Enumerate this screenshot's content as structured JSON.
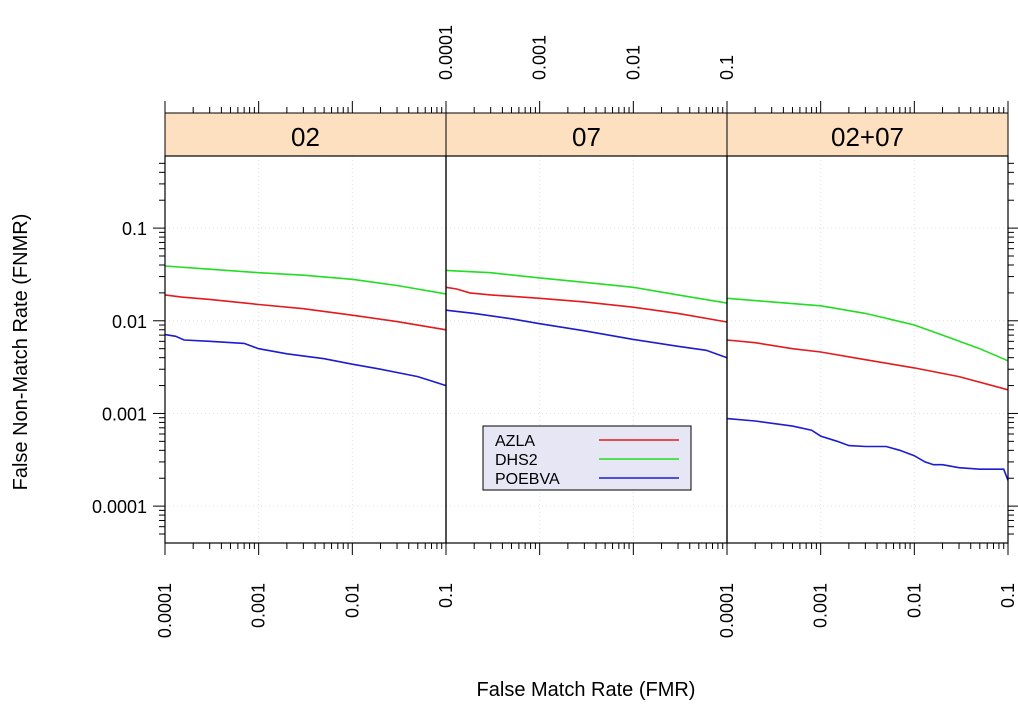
{
  "chart_data": {
    "type": "line",
    "xlabel": "False Match Rate (FMR)",
    "ylabel": "False Non-Match Rate (FNMR)",
    "x_scale": "log",
    "y_scale": "log",
    "xlim": [
      0.0001,
      0.1
    ],
    "ylim": [
      4e-05,
      0.6
    ],
    "x_ticks": [
      "0.0001",
      "0.001",
      "0.01",
      "0.1"
    ],
    "y_ticks": [
      "0.0001",
      "0.001",
      "0.01",
      "0.1"
    ],
    "grid": true,
    "legend_position": "inside-bottom-center",
    "legend": [
      "AZLA",
      "DHS2",
      "POEBVA"
    ],
    "series_colors": {
      "AZLA": "#e41a1c",
      "DHS2": "#22dd22",
      "POEBVA": "#1c1cd0"
    },
    "strip_color": "#fde0c0",
    "panels": [
      {
        "label": "02",
        "series": [
          {
            "name": "AZLA",
            "x": [
              0.0001,
              0.00015,
              0.0003,
              0.001,
              0.003,
              0.01,
              0.03,
              0.1
            ],
            "y": [
              0.019,
              0.018,
              0.017,
              0.015,
              0.0135,
              0.0115,
              0.0098,
              0.008
            ]
          },
          {
            "name": "DHS2",
            "x": [
              0.0001,
              0.0003,
              0.001,
              0.003,
              0.01,
              0.03,
              0.1
            ],
            "y": [
              0.039,
              0.036,
              0.033,
              0.031,
              0.028,
              0.024,
              0.0195
            ]
          },
          {
            "name": "POEBVA",
            "x": [
              0.0001,
              0.00013,
              0.00016,
              0.0003,
              0.0007,
              0.001,
              0.002,
              0.005,
              0.01,
              0.02,
              0.05,
              0.1
            ],
            "y": [
              0.0071,
              0.0068,
              0.0062,
              0.006,
              0.0057,
              0.005,
              0.0044,
              0.0039,
              0.0034,
              0.003,
              0.0025,
              0.002
            ]
          }
        ]
      },
      {
        "label": "07",
        "series": [
          {
            "name": "AZLA",
            "x": [
              0.0001,
              0.00013,
              0.00018,
              0.0003,
              0.001,
              0.003,
              0.01,
              0.03,
              0.1
            ],
            "y": [
              0.023,
              0.022,
              0.02,
              0.019,
              0.0175,
              0.016,
              0.014,
              0.012,
              0.0097
            ]
          },
          {
            "name": "DHS2",
            "x": [
              0.0001,
              0.0003,
              0.001,
              0.003,
              0.01,
              0.03,
              0.1
            ],
            "y": [
              0.035,
              0.033,
              0.029,
              0.026,
              0.023,
              0.019,
              0.0155
            ]
          },
          {
            "name": "POEBVA",
            "x": [
              0.0001,
              0.0002,
              0.0005,
              0.001,
              0.003,
              0.01,
              0.03,
              0.06,
              0.1
            ],
            "y": [
              0.013,
              0.012,
              0.0105,
              0.0093,
              0.0078,
              0.0063,
              0.0053,
              0.0048,
              0.004
            ]
          }
        ]
      },
      {
        "label": "02+07",
        "series": [
          {
            "name": "AZLA",
            "x": [
              0.0001,
              0.0002,
              0.0005,
              0.001,
              0.003,
              0.01,
              0.03,
              0.1
            ],
            "y": [
              0.0062,
              0.0058,
              0.005,
              0.0046,
              0.0038,
              0.0031,
              0.0025,
              0.0018
            ]
          },
          {
            "name": "DHS2",
            "x": [
              0.0001,
              0.0003,
              0.001,
              0.003,
              0.01,
              0.02,
              0.05,
              0.1
            ],
            "y": [
              0.0175,
              0.016,
              0.0145,
              0.012,
              0.009,
              0.007,
              0.005,
              0.0037
            ]
          },
          {
            "name": "POEBVA",
            "x": [
              0.0001,
              0.0002,
              0.0005,
              0.0008,
              0.001,
              0.0015,
              0.002,
              0.003,
              0.005,
              0.007,
              0.01,
              0.013,
              0.016,
              0.02,
              0.03,
              0.05,
              0.07,
              0.09,
              0.1
            ],
            "y": [
              0.00088,
              0.00083,
              0.00073,
              0.00066,
              0.00057,
              0.0005,
              0.00045,
              0.00044,
              0.00044,
              0.0004,
              0.00035,
              0.0003,
              0.00028,
              0.00028,
              0.00026,
              0.00025,
              0.00025,
              0.00025,
              0.00019
            ]
          }
        ]
      }
    ]
  }
}
